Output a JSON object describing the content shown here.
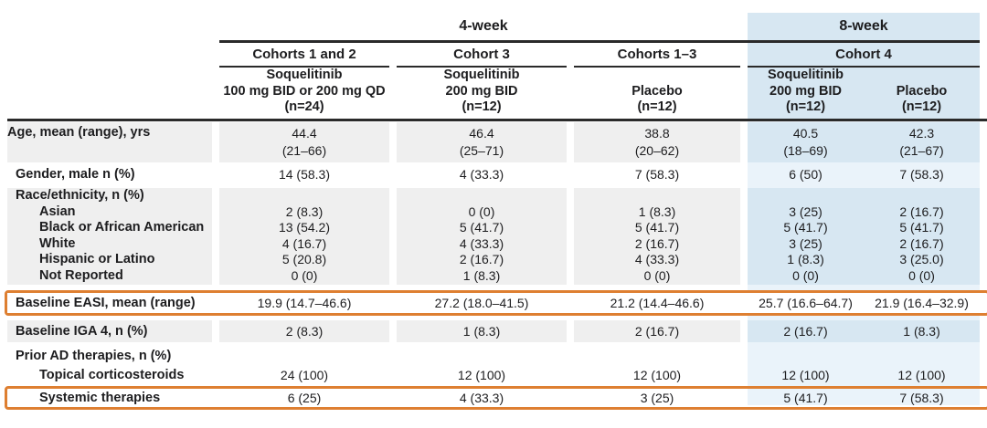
{
  "colors": {
    "eight_week_panel": "#eaf3fa",
    "eight_week_cell": "#d7e7f2",
    "gray_row": "#efefef",
    "highlight_border": "#de7f31",
    "rule_line": "#2a2a2a"
  },
  "table": {
    "header": {
      "week_groups": [
        {
          "label": "4-week"
        },
        {
          "label": "8-week"
        }
      ],
      "cohorts": [
        {
          "label": "Cohorts 1 and 2"
        },
        {
          "label": "Cohort 3"
        },
        {
          "label": "Cohorts 1–3"
        },
        {
          "label": "Cohort 4"
        }
      ],
      "columns": [
        {
          "name": "Soquelitinib",
          "dose": "100 mg BID or 200 mg QD",
          "n": "(n=24)"
        },
        {
          "name": "Soquelitinib",
          "dose": "200 mg BID",
          "n": "(n=12)"
        },
        {
          "name": "Placebo",
          "dose": "",
          "n": "(n=12)"
        },
        {
          "name": "Soquelitinib",
          "dose": "200 mg BID",
          "n": "(n=12)"
        },
        {
          "name": "Placebo",
          "dose": "",
          "n": "(n=12)"
        }
      ]
    },
    "rows": {
      "age": {
        "label": "Age, mean (range), yrs",
        "mean": [
          "44.4",
          "46.4",
          "38.8",
          "40.5",
          "42.3"
        ],
        "range": [
          "(21–66)",
          "(25–71)",
          "(20–62)",
          "(18–69)",
          "(21–67)"
        ]
      },
      "gender": {
        "label": "Gender, male n (%)",
        "v": [
          "14 (58.3)",
          "4 (33.3)",
          "7 (58.3)",
          "6 (50)",
          "7 (58.3)"
        ]
      },
      "race": {
        "label": "Race/ethnicity, n (%)"
      },
      "race_asian": {
        "label": "Asian",
        "v": [
          "2 (8.3)",
          "0 (0)",
          "1 (8.3)",
          "3 (25)",
          "2 (16.7)"
        ]
      },
      "race_black": {
        "label": "Black or African American",
        "v": [
          "13 (54.2)",
          "5 (41.7)",
          "5 (41.7)",
          "5 (41.7)",
          "5 (41.7)"
        ]
      },
      "race_white": {
        "label": "White",
        "v": [
          "4 (16.7)",
          "4 (33.3)",
          "2 (16.7)",
          "3 (25)",
          "2 (16.7)"
        ]
      },
      "race_hispanic": {
        "label": "Hispanic or Latino",
        "v": [
          "5 (20.8)",
          "2 (16.7)",
          "4 (33.3)",
          "1 (8.3)",
          "3 (25.0)"
        ]
      },
      "race_not_reported": {
        "label": "Not Reported",
        "v": [
          "0 (0)",
          "1 (8.3)",
          "0 (0)",
          "0 (0)",
          "0 (0)"
        ]
      },
      "easi": {
        "label": "Baseline EASI, mean (range)",
        "v": [
          "19.9 (14.7–46.6)",
          "27.2 (18.0–41.5)",
          "21.2 (14.4–46.6)",
          "25.7 (16.6–64.7)",
          "21.9 (16.4–32.9)"
        ]
      },
      "iga": {
        "label": "Baseline IGA 4, n (%)",
        "v": [
          "2 (8.3)",
          "1 (8.3)",
          "2 (16.7)",
          "2 (16.7)",
          "1 (8.3)"
        ]
      },
      "prior": {
        "label": "Prior AD therapies, n (%)"
      },
      "prior_topical": {
        "label": "Topical corticosteroids",
        "v": [
          "24 (100)",
          "12 (100)",
          "12 (100)",
          "12 (100)",
          "12 (100)"
        ]
      },
      "prior_systemic": {
        "label": "Systemic therapies",
        "v": [
          "6 (25)",
          "4 (33.3)",
          "3 (25)",
          "5 (41.7)",
          "7 (58.3)"
        ]
      }
    }
  }
}
